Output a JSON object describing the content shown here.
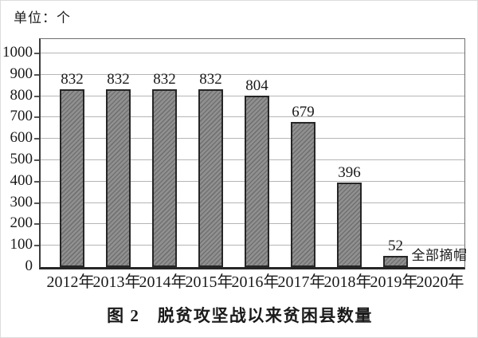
{
  "unit_label": "单位：个",
  "caption": "图 2　脱贫攻坚战以来贫困县数量",
  "annotation": {
    "text": "全部摘帽",
    "anchor_category": "2020年"
  },
  "colors": {
    "bar_fill": "#909090",
    "bar_hatch": "#717171",
    "bar_border": "#262626",
    "gridline": "#b5b5b5",
    "axis": "#3c3c3c",
    "text": "#1a1a1a"
  },
  "chart_data": {
    "type": "bar",
    "title": "图 2　脱贫攻坚战以来贫困县数量",
    "unit": "个",
    "categories": [
      "2012年",
      "2013年",
      "2014年",
      "2015年",
      "2016年",
      "2017年",
      "2018年",
      "2019年",
      "2020年"
    ],
    "values": [
      832,
      832,
      832,
      832,
      804,
      679,
      396,
      52,
      null
    ],
    "bar_labels": [
      "832",
      "832",
      "832",
      "832",
      "804",
      "679",
      "396",
      "52",
      ""
    ],
    "xlabel": "",
    "ylabel": "",
    "ylim": [
      0,
      1080
    ],
    "yticks": [
      0,
      100,
      200,
      300,
      400,
      500,
      600,
      700,
      800,
      900,
      1000
    ],
    "grid": true,
    "hatch": "diagonal-forward",
    "legend": "none",
    "annotation_text": "全部摘帽"
  }
}
